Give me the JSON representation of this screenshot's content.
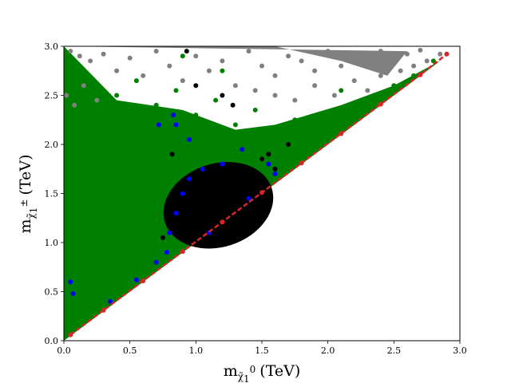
{
  "chart_data": {
    "type": "scatter",
    "title": "",
    "xlabel": {
      "base": "m",
      "sub": "χ̃",
      "sub2": "1",
      "sup2": "0",
      "unit": "(TeV)"
    },
    "ylabel": {
      "base": "m",
      "sub": "χ̃",
      "sub2": "1",
      "sup2": "±",
      "unit": "(TeV)"
    },
    "xlim": [
      0.0,
      3.0
    ],
    "ylim": [
      0.0,
      3.0
    ],
    "x_ticks": [
      "0.0",
      "0.5",
      "1.0",
      "1.5",
      "2.0",
      "2.5",
      "3.0"
    ],
    "y_ticks": [
      "0.0",
      "0.5",
      "1.0",
      "1.5",
      "2.0",
      "2.5",
      "3.0"
    ],
    "grid": false,
    "colors": {
      "grey": "#808080",
      "green": "#008000",
      "blue": "#0000ff",
      "black": "#000000",
      "red": "#d62728"
    },
    "series": [
      {
        "color": "grey",
        "region": "upper band, y > x, mainly y > 2.2",
        "points": [
          [
            0.05,
            2.95
          ],
          [
            0.12,
            2.9
          ],
          [
            0.2,
            2.85
          ],
          [
            0.3,
            2.92
          ],
          [
            0.4,
            2.75
          ],
          [
            0.5,
            2.88
          ],
          [
            0.6,
            2.7
          ],
          [
            0.7,
            2.95
          ],
          [
            0.8,
            2.8
          ],
          [
            0.9,
            2.65
          ],
          [
            1.0,
            2.9
          ],
          [
            1.1,
            2.75
          ],
          [
            1.2,
            2.85
          ],
          [
            1.3,
            2.6
          ],
          [
            1.4,
            2.95
          ],
          [
            1.5,
            2.8
          ],
          [
            1.6,
            2.7
          ],
          [
            1.7,
            2.9
          ],
          [
            1.8,
            2.85
          ],
          [
            1.9,
            2.75
          ],
          [
            2.0,
            2.95
          ],
          [
            2.1,
            2.8
          ],
          [
            2.2,
            2.9
          ],
          [
            2.3,
            2.85
          ],
          [
            2.4,
            2.95
          ],
          [
            2.5,
            2.88
          ],
          [
            2.6,
            2.92
          ],
          [
            2.7,
            2.96
          ],
          [
            0.02,
            2.5
          ],
          [
            0.08,
            2.4
          ],
          [
            0.15,
            2.6
          ],
          [
            0.25,
            2.45
          ],
          [
            1.45,
            2.55
          ],
          [
            1.6,
            2.5
          ],
          [
            1.75,
            2.45
          ],
          [
            1.9,
            2.6
          ],
          [
            2.05,
            2.5
          ],
          [
            2.2,
            2.65
          ],
          [
            2.3,
            2.55
          ],
          [
            2.4,
            2.7
          ],
          [
            2.55,
            2.75
          ],
          [
            2.65,
            2.8
          ],
          [
            2.75,
            2.85
          ],
          [
            2.85,
            2.92
          ]
        ]
      },
      {
        "color": "green",
        "region": "dense wedge above the diagonal, x up to ~2.9",
        "points": [
          [
            0.1,
            2.8
          ],
          [
            0.25,
            2.6
          ],
          [
            0.4,
            2.5
          ],
          [
            0.55,
            2.65
          ],
          [
            0.7,
            2.4
          ],
          [
            0.85,
            2.55
          ],
          [
            1.0,
            2.3
          ],
          [
            1.15,
            2.45
          ],
          [
            1.3,
            2.2
          ],
          [
            1.45,
            2.35
          ],
          [
            1.6,
            2.1
          ],
          [
            1.75,
            2.25
          ],
          [
            1.9,
            2.15
          ],
          [
            2.05,
            2.3
          ],
          [
            2.2,
            2.4
          ],
          [
            2.35,
            2.5
          ],
          [
            2.5,
            2.6
          ],
          [
            2.65,
            2.7
          ],
          [
            2.8,
            2.85
          ],
          [
            1.2,
            2.75
          ],
          [
            0.9,
            2.9
          ],
          [
            2.1,
            2.55
          ],
          [
            1.7,
            2.0
          ],
          [
            2.25,
            2.35
          ],
          [
            2.45,
            2.55
          ],
          [
            1.85,
            1.95
          ],
          [
            2.0,
            2.1
          ]
        ]
      },
      {
        "color": "blue",
        "region": "edge of the black blob and near the diagonal",
        "points": [
          [
            0.05,
            0.6
          ],
          [
            0.07,
            0.48
          ],
          [
            0.35,
            0.4
          ],
          [
            0.55,
            0.62
          ],
          [
            0.7,
            0.8
          ],
          [
            0.78,
            0.9
          ],
          [
            0.8,
            1.1
          ],
          [
            0.85,
            1.3
          ],
          [
            0.9,
            1.5
          ],
          [
            0.95,
            1.65
          ],
          [
            1.05,
            1.75
          ],
          [
            1.2,
            1.8
          ],
          [
            1.35,
            1.95
          ],
          [
            1.55,
            1.8
          ],
          [
            1.6,
            1.7
          ],
          [
            0.83,
            2.3
          ],
          [
            0.95,
            2.05
          ],
          [
            1.4,
            1.45
          ],
          [
            1.1,
            1.1
          ],
          [
            0.85,
            2.2
          ],
          [
            0.72,
            2.2
          ]
        ]
      },
      {
        "color": "black",
        "region": "dense blob centred near (1.15, 1.4)",
        "points": [
          [
            0.75,
            1.05
          ],
          [
            0.8,
            1.25
          ],
          [
            0.85,
            1.45
          ],
          [
            0.9,
            1.6
          ],
          [
            0.95,
            1.35
          ],
          [
            1.0,
            1.2
          ],
          [
            1.05,
            1.55
          ],
          [
            1.1,
            1.7
          ],
          [
            1.15,
            1.45
          ],
          [
            1.2,
            1.3
          ],
          [
            1.25,
            1.6
          ],
          [
            1.3,
            1.5
          ],
          [
            1.35,
            1.75
          ],
          [
            1.4,
            1.6
          ],
          [
            1.45,
            1.7
          ],
          [
            1.5,
            1.85
          ],
          [
            1.55,
            1.9
          ],
          [
            1.6,
            1.75
          ],
          [
            1.0,
            2.6
          ],
          [
            0.93,
            2.95
          ],
          [
            1.2,
            2.5
          ],
          [
            1.28,
            2.4
          ],
          [
            1.7,
            2.0
          ],
          [
            0.82,
            1.9
          ],
          [
            0.97,
            1.05
          ],
          [
            1.12,
            1.22
          ],
          [
            1.32,
            1.38
          ]
        ]
      },
      {
        "color": "red",
        "region": "along the diagonal y = x",
        "points": [
          [
            0.05,
            0.06
          ],
          [
            0.3,
            0.31
          ],
          [
            0.6,
            0.61
          ],
          [
            0.9,
            0.91
          ],
          [
            1.2,
            1.21
          ],
          [
            1.5,
            1.51
          ],
          [
            1.8,
            1.81
          ],
          [
            2.1,
            2.11
          ],
          [
            2.4,
            2.41
          ],
          [
            2.7,
            2.71
          ],
          [
            2.9,
            2.92
          ]
        ]
      }
    ]
  }
}
